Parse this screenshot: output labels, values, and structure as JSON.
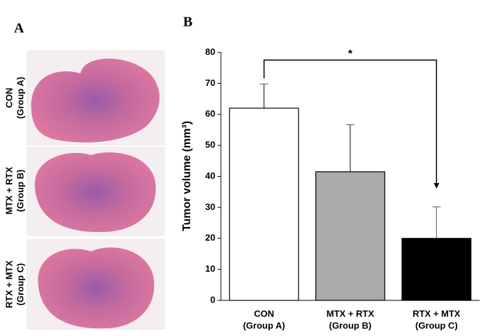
{
  "panel_labels": [
    "A",
    "B"
  ],
  "images": [
    {
      "label": [
        "CON",
        "(Group A)"
      ]
    },
    {
      "label": [
        "MTX + RTX",
        "(Group B)"
      ]
    },
    {
      "label": [
        "RTX + MTX",
        "(Group C)"
      ]
    }
  ],
  "chart_data": {
    "type": "bar",
    "y_label": "Tumor volume (mm³)",
    "categories": [
      [
        "CON",
        "(Group A)"
      ],
      [
        "MTX + RTX",
        "(Group B)"
      ],
      [
        "RTX  + MTX",
        "(Group C)"
      ]
    ],
    "values": [
      62,
      41.5,
      20
    ],
    "errors": [
      7.8,
      15.2,
      10.2
    ],
    "colors": [
      "#ffffff",
      "#aaaaaa",
      "#000000"
    ],
    "ylim": [
      0,
      80
    ],
    "yticks": [
      0,
      10,
      20,
      30,
      40,
      50,
      60,
      70,
      80
    ],
    "annotation": "*"
  }
}
